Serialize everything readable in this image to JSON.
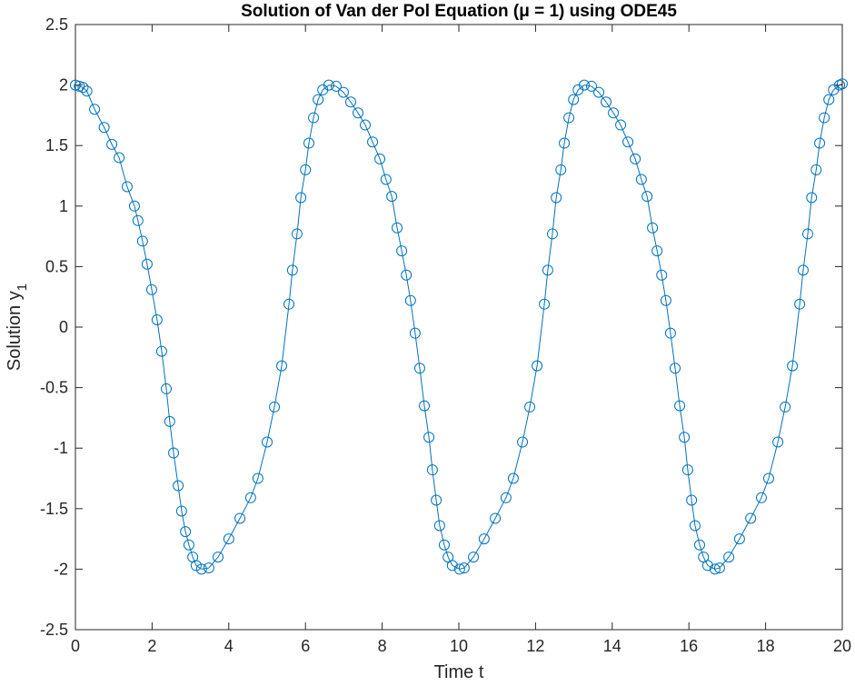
{
  "chart_data": {
    "type": "line",
    "title": "Solution of Van der Pol Equation (μ = 1) using ODE45",
    "xlabel": "Time t",
    "ylabel": {
      "text": "Solution y",
      "subscript": "1"
    },
    "x": [
      0,
      0.1,
      0.2,
      0.3,
      0.5,
      0.75,
      0.95,
      1.14,
      1.35,
      1.54,
      1.63,
      1.75,
      1.87,
      1.99,
      2.13,
      2.25,
      2.37,
      2.46,
      2.56,
      2.68,
      2.77,
      2.87,
      2.96,
      3.06,
      3.15,
      3.29,
      3.48,
      3.72,
      4.0,
      4.29,
      4.57,
      4.76,
      5.0,
      5.19,
      5.38,
      5.57,
      5.66,
      5.78,
      5.88,
      6.0,
      6.09,
      6.21,
      6.33,
      6.45,
      6.61,
      6.8,
      6.99,
      7.18,
      7.37,
      7.56,
      7.75,
      7.94,
      8.1,
      8.25,
      8.39,
      8.51,
      8.63,
      8.74,
      8.86,
      8.98,
      9.1,
      9.22,
      9.31,
      9.41,
      9.5,
      9.62,
      9.72,
      9.83,
      10.02,
      10.14,
      10.38,
      10.66,
      10.95,
      11.23,
      11.42,
      11.66,
      11.85,
      12.04,
      12.23,
      12.32,
      12.44,
      12.54,
      12.66,
      12.75,
      12.87,
      12.99,
      13.11,
      13.27,
      13.46,
      13.65,
      13.84,
      14.03,
      14.22,
      14.41,
      14.6,
      14.76,
      14.91,
      15.05,
      15.17,
      15.29,
      15.4,
      15.52,
      15.64,
      15.76,
      15.88,
      15.97,
      16.07,
      16.16,
      16.28,
      16.38,
      16.49,
      16.68,
      16.8,
      17.04,
      17.32,
      17.61,
      17.89,
      18.08,
      18.32,
      18.51,
      18.7,
      18.89,
      18.98,
      19.1,
      19.2,
      19.32,
      19.41,
      19.53,
      19.65,
      19.77,
      19.93,
      20
    ],
    "series": [
      {
        "name": "y1",
        "color": "#0072bd",
        "marker": "circle",
        "values": [
          2,
          1.99,
          1.98,
          1.95,
          1.8,
          1.65,
          1.51,
          1.4,
          1.16,
          1.0,
          0.88,
          0.71,
          0.52,
          0.31,
          0.06,
          -0.2,
          -0.51,
          -0.78,
          -1.04,
          -1.31,
          -1.52,
          -1.69,
          -1.8,
          -1.9,
          -1.97,
          -2.0,
          -1.99,
          -1.9,
          -1.75,
          -1.58,
          -1.41,
          -1.25,
          -0.95,
          -0.66,
          -0.32,
          0.19,
          0.47,
          0.77,
          1.07,
          1.3,
          1.52,
          1.73,
          1.88,
          1.96,
          2.0,
          1.99,
          1.94,
          1.86,
          1.77,
          1.67,
          1.53,
          1.39,
          1.22,
          1.08,
          0.82,
          0.63,
          0.43,
          0.22,
          -0.05,
          -0.34,
          -0.65,
          -0.91,
          -1.18,
          -1.43,
          -1.64,
          -1.8,
          -1.9,
          -1.97,
          -2.0,
          -1.99,
          -1.9,
          -1.75,
          -1.58,
          -1.41,
          -1.25,
          -0.95,
          -0.66,
          -0.32,
          0.19,
          0.47,
          0.77,
          1.07,
          1.3,
          1.52,
          1.73,
          1.88,
          1.96,
          2.0,
          1.99,
          1.94,
          1.86,
          1.77,
          1.67,
          1.53,
          1.39,
          1.22,
          1.08,
          0.82,
          0.63,
          0.43,
          0.22,
          -0.05,
          -0.34,
          -0.65,
          -0.91,
          -1.18,
          -1.43,
          -1.64,
          -1.8,
          -1.9,
          -1.97,
          -2.0,
          -1.99,
          -1.9,
          -1.75,
          -1.58,
          -1.41,
          -1.25,
          -0.95,
          -0.66,
          -0.32,
          0.19,
          0.47,
          0.77,
          1.07,
          1.3,
          1.52,
          1.73,
          1.88,
          1.96,
          2.0,
          2.01
        ]
      }
    ],
    "xlim": [
      0,
      20
    ],
    "xticks": [
      0,
      2,
      4,
      6,
      8,
      10,
      12,
      14,
      16,
      18,
      20
    ],
    "ylim": [
      -2.5,
      2.5
    ],
    "yticks": [
      -2.5,
      -2,
      -1.5,
      -1,
      -0.5,
      0,
      0.5,
      1,
      1.5,
      2,
      2.5
    ],
    "grid": false
  }
}
